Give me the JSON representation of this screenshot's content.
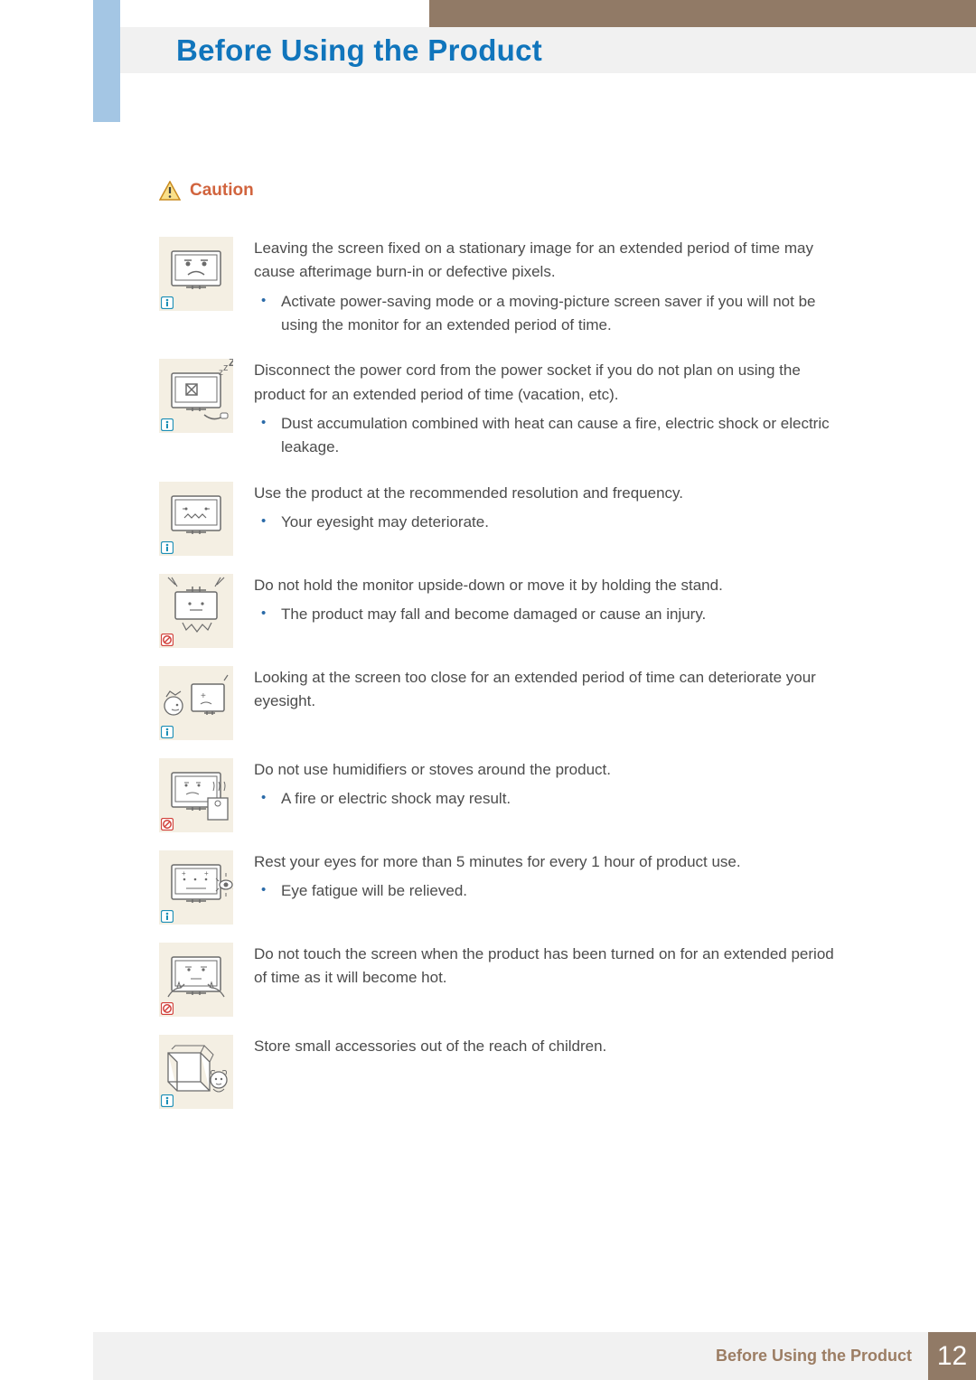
{
  "colors": {
    "brown_strip": "#917a66",
    "blue_tab": "#a4c6e4",
    "header_bg": "#f1f1f1",
    "title_blue": "#1075bc",
    "footer_text": "#9c7d63",
    "body_text": "#4c4c4c",
    "bullet": "#2a6aa8",
    "caution_red": "#d1643e",
    "icon_bg": "#f4efe3",
    "info_badge": "#1d8fb6",
    "prohibit_badge": "#d1403a",
    "warn_border": "#c98a1f",
    "warn_fill": "#f9e08a"
  },
  "header": {
    "title": "Before Using the Product"
  },
  "footer": {
    "title": "Before Using the Product",
    "page_number": "12"
  },
  "caution": {
    "label": "Caution"
  },
  "items": [
    {
      "badge": "info",
      "main": "Leaving the screen fixed on a stationary image for an extended period of time may cause afterimage burn-in or defective pixels.",
      "bullets": [
        "Activate power-saving mode or a moving-picture screen saver if you will not be using the monitor for an extended period of time."
      ]
    },
    {
      "badge": "info",
      "main": "Disconnect the power cord from the power socket if you do not plan on using the product for an extended period of time (vacation, etc).",
      "bullets": [
        "Dust accumulation combined with heat can cause a fire, electric shock or electric leakage."
      ]
    },
    {
      "badge": "info",
      "main": "Use the product at the recommended resolution and frequency.",
      "bullets": [
        "Your eyesight may deteriorate."
      ]
    },
    {
      "badge": "prohibit",
      "main": "Do not hold the monitor upside-down or move it by holding the stand.",
      "bullets": [
        "The product may fall and become damaged or cause an injury."
      ]
    },
    {
      "badge": "info",
      "main": "Looking at the screen too close for an extended period of time can deteriorate your eyesight.",
      "bullets": []
    },
    {
      "badge": "prohibit",
      "main": "Do not use humidifiers or stoves around the product.",
      "bullets": [
        "A fire or electric shock may result."
      ]
    },
    {
      "badge": "info",
      "main": "Rest your eyes for more than 5 minutes for every 1 hour of product use.",
      "bullets": [
        "Eye fatigue will be relieved."
      ]
    },
    {
      "badge": "prohibit",
      "main": "Do not touch the screen when the product has been turned on for an extended period of time as it will become hot.",
      "bullets": []
    },
    {
      "badge": "info",
      "main": "Store small accessories out of the reach of children.",
      "bullets": []
    }
  ]
}
